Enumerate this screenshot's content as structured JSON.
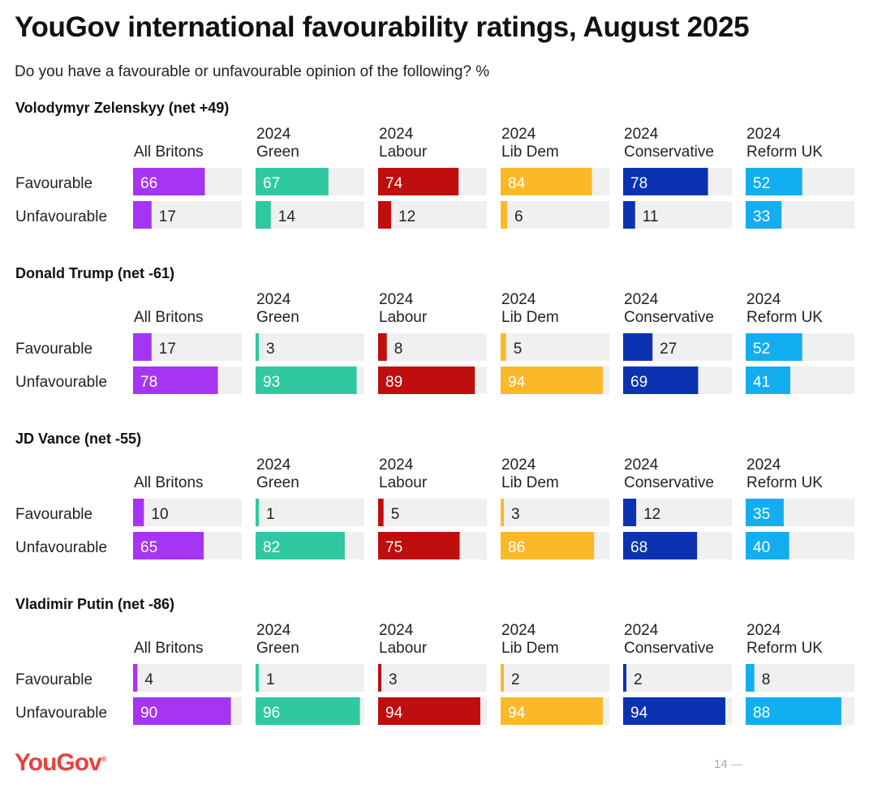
{
  "title": "YouGov international favourability ratings, August 2025",
  "subtitle": "Do you have a favourable or unfavourable opinion of the following? %",
  "brand": {
    "logo_text": "YouGov",
    "logo_mark": "®",
    "page_number": "14"
  },
  "colors": {
    "track": "#f0f0f0",
    "All Britons": "#a535f2",
    "2024 Green": "#2fc8a0",
    "2024 Labour": "#c00d0d",
    "2024 Lib Dem": "#fbb928",
    "2024 Conservative": "#0b33b1",
    "2024 Reform UK": "#12aef0"
  },
  "chart_data": {
    "type": "bar",
    "orientation": "horizontal",
    "unit": "%",
    "xlim": [
      0,
      100
    ],
    "grid": false,
    "categories": [
      "Favourable",
      "Unfavourable"
    ],
    "groups": [
      {
        "label": "All Britons",
        "label_lines": [
          "",
          "All Britons"
        ]
      },
      {
        "label": "2024 Green",
        "label_lines": [
          "2024",
          "Green"
        ]
      },
      {
        "label": "2024 Labour",
        "label_lines": [
          "2024",
          "Labour"
        ]
      },
      {
        "label": "2024 Lib Dem",
        "label_lines": [
          "2024",
          "Lib Dem"
        ]
      },
      {
        "label": "2024 Conservative",
        "label_lines": [
          "2024",
          "Conservative"
        ]
      },
      {
        "label": "2024 Reform UK",
        "label_lines": [
          "2024",
          "Reform UK"
        ]
      }
    ],
    "panels": [
      {
        "title": "Volodymyr Zelenskyy (net +49)",
        "favourable": [
          66,
          67,
          74,
          84,
          78,
          52
        ],
        "unfavourable": [
          17,
          14,
          12,
          6,
          11,
          33
        ]
      },
      {
        "title": "Donald Trump (net -61)",
        "favourable": [
          17,
          3,
          8,
          5,
          27,
          52
        ],
        "unfavourable": [
          78,
          93,
          89,
          94,
          69,
          41
        ]
      },
      {
        "title": "JD Vance (net -55)",
        "favourable": [
          10,
          1,
          5,
          3,
          12,
          35
        ],
        "unfavourable": [
          65,
          82,
          75,
          86,
          68,
          40
        ]
      },
      {
        "title": "Vladimir Putin (net -86)",
        "favourable": [
          4,
          1,
          3,
          2,
          2,
          8
        ],
        "unfavourable": [
          90,
          96,
          94,
          94,
          94,
          88
        ]
      }
    ]
  }
}
